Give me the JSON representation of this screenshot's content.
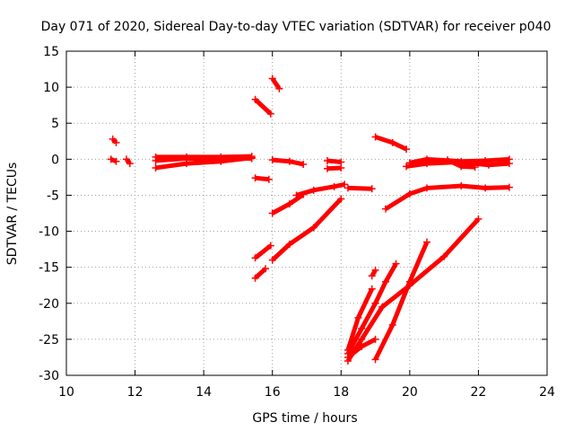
{
  "chart_data": {
    "type": "scatter",
    "title": "Day 071 of 2020, Sidereal Day-to-day VTEC variation (SDTVAR) for receiver p040",
    "xlabel": "GPS time / hours",
    "ylabel": "SDTVAR / TECUs",
    "xlim": [
      10,
      24
    ],
    "ylim": [
      -30,
      15
    ],
    "xticks": [
      "10",
      "12",
      "14",
      "16",
      "18",
      "20",
      "22",
      "24"
    ],
    "yticks": [
      "15",
      "10",
      "5",
      "0",
      "-5",
      "-10",
      "-15",
      "-20",
      "-25",
      "-30"
    ],
    "grid": true,
    "marker_color": "#ff0000",
    "series": [
      {
        "points": [
          [
            11.3,
            0.0
          ],
          [
            11.45,
            -0.3
          ]
        ]
      },
      {
        "points": [
          [
            11.35,
            2.8
          ],
          [
            11.45,
            2.3
          ]
        ]
      },
      {
        "points": [
          [
            11.75,
            0.0
          ],
          [
            11.85,
            -0.6
          ]
        ]
      },
      {
        "points": [
          [
            12.6,
            -0.2
          ],
          [
            13.5,
            0.1
          ],
          [
            14.5,
            0.1
          ],
          [
            15.4,
            0.1
          ]
        ]
      },
      {
        "points": [
          [
            12.6,
            -1.2
          ],
          [
            13.5,
            -0.6
          ],
          [
            14.5,
            -0.3
          ],
          [
            15.4,
            0.2
          ]
        ]
      },
      {
        "points": [
          [
            12.6,
            0.3
          ],
          [
            13.5,
            0.3
          ],
          [
            14.5,
            0.3
          ],
          [
            15.4,
            0.4
          ]
        ]
      },
      {
        "points": [
          [
            15.5,
            8.3
          ],
          [
            15.95,
            6.3
          ]
        ]
      },
      {
        "points": [
          [
            15.5,
            -2.6
          ],
          [
            15.9,
            -2.8
          ]
        ]
      },
      {
        "points": [
          [
            15.5,
            -13.7
          ],
          [
            15.95,
            -12.0
          ]
        ]
      },
      {
        "points": [
          [
            15.5,
            -16.5
          ],
          [
            15.8,
            -15.2
          ]
        ]
      },
      {
        "points": [
          [
            16.0,
            11.2
          ],
          [
            16.2,
            9.8
          ]
        ]
      },
      {
        "points": [
          [
            16.0,
            -0.1
          ],
          [
            16.5,
            -0.3
          ],
          [
            16.9,
            -0.7
          ]
        ]
      },
      {
        "points": [
          [
            16.0,
            -7.5
          ],
          [
            16.5,
            -6.2
          ],
          [
            16.9,
            -4.9
          ]
        ]
      },
      {
        "points": [
          [
            16.0,
            -14.0
          ],
          [
            16.5,
            -11.8
          ],
          [
            17.2,
            -9.5
          ],
          [
            18.0,
            -5.5
          ]
        ]
      },
      {
        "points": [
          [
            16.7,
            -5.0
          ],
          [
            17.2,
            -4.3
          ],
          [
            17.8,
            -3.8
          ],
          [
            18.1,
            -3.5
          ]
        ]
      },
      {
        "points": [
          [
            17.6,
            -0.2
          ],
          [
            18.0,
            -0.4
          ]
        ]
      },
      {
        "points": [
          [
            17.6,
            -1.3
          ],
          [
            18.0,
            -1.2
          ]
        ]
      },
      {
        "points": [
          [
            18.2,
            -4.0
          ],
          [
            18.9,
            -4.1
          ]
        ]
      },
      {
        "points": [
          [
            19.0,
            3.1
          ],
          [
            19.5,
            2.3
          ],
          [
            19.9,
            1.4
          ]
        ]
      },
      {
        "points": [
          [
            19.3,
            -6.9
          ],
          [
            20.0,
            -4.8
          ],
          [
            20.5,
            -4.0
          ],
          [
            21.5,
            -3.7
          ],
          [
            22.2,
            -4.0
          ],
          [
            22.9,
            -3.9
          ]
        ]
      },
      {
        "points": [
          [
            20.0,
            -0.5
          ],
          [
            20.5,
            0.0
          ],
          [
            21.5,
            -0.3
          ],
          [
            22.2,
            -0.2
          ],
          [
            22.9,
            0.0
          ]
        ]
      },
      {
        "points": [
          [
            19.9,
            -1.0
          ],
          [
            20.5,
            -0.6
          ],
          [
            21.4,
            -0.4
          ],
          [
            22.3,
            -0.8
          ],
          [
            22.9,
            -0.6
          ]
        ]
      },
      {
        "points": [
          [
            21.1,
            -0.1
          ],
          [
            21.5,
            -1.0
          ],
          [
            21.9,
            -1.1
          ]
        ]
      },
      {
        "points": [
          [
            18.2,
            -28.0
          ],
          [
            18.6,
            -25.0
          ],
          [
            19.2,
            -20.5
          ],
          [
            20.0,
            -17.5
          ],
          [
            21.0,
            -13.5
          ],
          [
            22.0,
            -8.3
          ]
        ]
      },
      {
        "points": [
          [
            18.2,
            -27.0
          ],
          [
            18.6,
            -23.5
          ],
          [
            19.0,
            -20.0
          ],
          [
            19.3,
            -17.0
          ],
          [
            19.6,
            -14.5
          ]
        ]
      },
      {
        "points": [
          [
            18.2,
            -27.5
          ],
          [
            18.6,
            -26.0
          ],
          [
            19.0,
            -25.0
          ]
        ]
      },
      {
        "points": [
          [
            18.2,
            -26.5
          ],
          [
            18.5,
            -22.0
          ],
          [
            18.9,
            -18.0
          ]
        ]
      },
      {
        "points": [
          [
            19.0,
            -27.8
          ],
          [
            19.5,
            -23.0
          ],
          [
            20.0,
            -17.0
          ],
          [
            20.5,
            -11.5
          ]
        ]
      },
      {
        "points": [
          [
            18.9,
            -16.2
          ],
          [
            19.0,
            -15.4
          ]
        ]
      }
    ]
  }
}
